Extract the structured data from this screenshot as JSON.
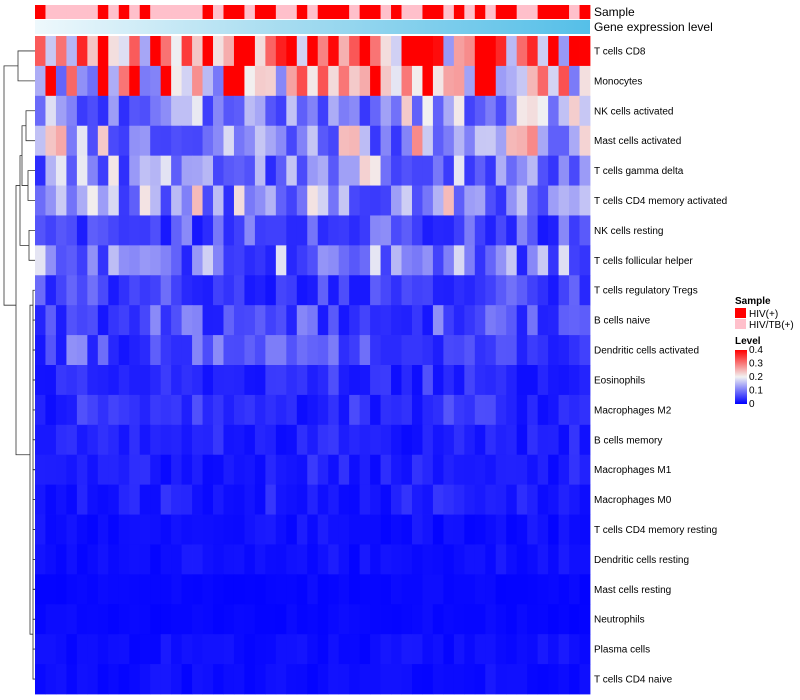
{
  "chart_data": {
    "type": "heatmap",
    "annotations": {
      "sample_label": "Sample",
      "expression_label": "Gene expression level",
      "sample_groups": [
        "HIV(+)",
        "HIV/TB(+)",
        "HIV/TB(+)",
        "HIV/TB(+)",
        "HIV/TB(+)",
        "HIV/TB(+)",
        "HIV(+)",
        "HIV/TB(+)",
        "HIV(+)",
        "HIV/TB(+)",
        "HIV(+)",
        "HIV/TB(+)",
        "HIV/TB(+)",
        "HIV/TB(+)",
        "HIV/TB(+)",
        "HIV/TB(+)",
        "HIV(+)",
        "HIV/TB(+)",
        "HIV(+)",
        "HIV(+)",
        "HIV/TB(+)",
        "HIV(+)",
        "HIV(+)",
        "HIV/TB(+)",
        "HIV/TB(+)",
        "HIV(+)",
        "HIV/TB(+)",
        "HIV(+)",
        "HIV(+)",
        "HIV(+)",
        "HIV/TB(+)",
        "HIV(+)",
        "HIV(+)",
        "HIV/TB(+)",
        "HIV(+)",
        "HIV/TB(+)",
        "HIV/TB(+)",
        "HIV(+)",
        "HIV(+)",
        "HIV/TB(+)",
        "HIV(+)",
        "HIV/TB(+)",
        "HIV(+)",
        "HIV/TB(+)",
        "HIV(+)",
        "HIV(+)",
        "HIV/TB(+)",
        "HIV/TB(+)",
        "HIV(+)",
        "HIV(+)",
        "HIV(+)",
        "HIV/TB(+)",
        "HIV(+)"
      ]
    },
    "rows": [
      "T cells CD8",
      "Monocytes",
      "NK cells activated",
      "Mast cells activated",
      "T cells gamma delta",
      "T cells CD4 memory activated",
      "NK cells resting",
      "T cells follicular helper",
      "T cells regulatory  Tregs",
      "B cells naive",
      "Dendritic cells activated",
      "Eosinophils",
      "Macrophages M2",
      "B cells memory",
      "Macrophages M1",
      "Macrophages M0",
      "T cells CD4 memory resting",
      "Dendritic cells resting",
      "Mast cells resting",
      "Neutrophils",
      "Plasma cells",
      "T cells CD4 naive"
    ],
    "num_columns": 53,
    "row_mean_level": [
      0.33,
      0.22,
      0.1,
      0.12,
      0.1,
      0.11,
      0.05,
      0.08,
      0.04,
      0.05,
      0.05,
      0.03,
      0.03,
      0.02,
      0.02,
      0.02,
      0.01,
      0.01,
      0.005,
      0.005,
      0.01,
      0.01
    ],
    "legend": {
      "sample_title": "Sample",
      "sample_entries": [
        {
          "label": "HIV(+)",
          "color": "#ff0000"
        },
        {
          "label": "HIV/TB(+)",
          "color": "#ffc0cb"
        }
      ],
      "level_title": "Level",
      "level_ticks": [
        "0.4",
        "0.3",
        "0.2",
        "0.1",
        "0"
      ],
      "level_range": [
        0,
        0.4
      ]
    },
    "colors": {
      "low": "#0000ff",
      "mid": "#f2f2f2",
      "high": "#ff0000",
      "gradient_light": "#a6dcf0",
      "gradient_dark": "#55bfe8"
    }
  }
}
